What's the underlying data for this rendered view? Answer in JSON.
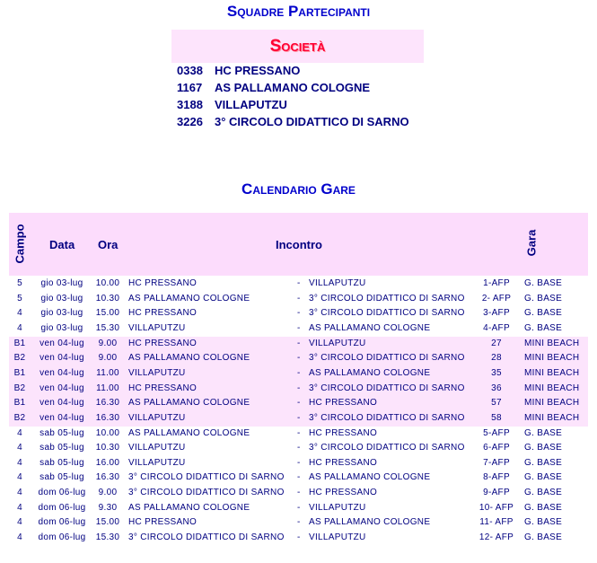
{
  "title": "Squadre Partecipanti",
  "societa": {
    "title": "Società",
    "items": [
      {
        "code": "0338",
        "name": "HC PRESSANO"
      },
      {
        "code": "1167",
        "name": "AS PALLAMANO COLOGNE"
      },
      {
        "code": "3188",
        "name": "VILLAPUTZU"
      },
      {
        "code": "3226",
        "name": "3° CIRCOLO DIDATTICO DI SARNO"
      }
    ]
  },
  "calendario": {
    "title": "Calendario Gare",
    "headers": {
      "campo": "Campo",
      "data": "Data",
      "ora": "Ora",
      "incontro": "Incontro",
      "gara": "Gara"
    },
    "rows": [
      {
        "campo": "5",
        "data": "gio 03-lug",
        "ora": "10.00",
        "home": "HC PRESSANO",
        "sep": "-",
        "away": "VILLAPUTZU",
        "num": "1-AFP",
        "tipo": "G. BASE",
        "hl": false
      },
      {
        "campo": "5",
        "data": "gio 03-lug",
        "ora": "10.30",
        "home": "AS PALLAMANO COLOGNE",
        "sep": "-",
        "away": "3° CIRCOLO DIDATTICO DI SARNO",
        "num": "2- AFP",
        "tipo": "G. BASE",
        "hl": false
      },
      {
        "campo": "4",
        "data": "gio 03-lug",
        "ora": "15.00",
        "home": "HC PRESSANO",
        "sep": "-",
        "away": "3° CIRCOLO DIDATTICO DI SARNO",
        "num": "3-AFP",
        "tipo": "G. BASE",
        "hl": false
      },
      {
        "campo": "4",
        "data": "gio 03-lug",
        "ora": "15.30",
        "home": "VILLAPUTZU",
        "sep": "-",
        "away": "AS PALLAMANO COLOGNE",
        "num": "4-AFP",
        "tipo": "G. BASE",
        "hl": false
      },
      {
        "campo": "B1",
        "data": "ven 04-lug",
        "ora": "9.00",
        "home": "HC PRESSANO",
        "sep": "-",
        "away": "VILLAPUTZU",
        "num": "27",
        "tipo": "MINI BEACH",
        "hl": true
      },
      {
        "campo": "B2",
        "data": "ven 04-lug",
        "ora": "9.00",
        "home": "AS PALLAMANO COLOGNE",
        "sep": "-",
        "away": "3° CIRCOLO DIDATTICO DI SARNO",
        "num": "28",
        "tipo": "MINI BEACH",
        "hl": true
      },
      {
        "campo": "B1",
        "data": "ven 04-lug",
        "ora": "11.00",
        "home": "VILLAPUTZU",
        "sep": "-",
        "away": "AS PALLAMANO COLOGNE",
        "num": "35",
        "tipo": "MINI BEACH",
        "hl": true
      },
      {
        "campo": "B2",
        "data": "ven 04-lug",
        "ora": "11.00",
        "home": "HC PRESSANO",
        "sep": "-",
        "away": "3° CIRCOLO DIDATTICO DI SARNO",
        "num": "36",
        "tipo": "MINI BEACH",
        "hl": true
      },
      {
        "campo": "B1",
        "data": "ven 04-lug",
        "ora": "16.30",
        "home": "AS PALLAMANO COLOGNE",
        "sep": "-",
        "away": "HC PRESSANO",
        "num": "57",
        "tipo": "MINI BEACH",
        "hl": true
      },
      {
        "campo": "B2",
        "data": "ven 04-lug",
        "ora": "16.30",
        "home": "VILLAPUTZU",
        "sep": "-",
        "away": "3° CIRCOLO DIDATTICO DI SARNO",
        "num": "58",
        "tipo": "MINI BEACH",
        "hl": true
      },
      {
        "campo": "4",
        "data": "sab 05-lug",
        "ora": "10.00",
        "home": "AS PALLAMANO COLOGNE",
        "sep": "-",
        "away": "HC PRESSANO",
        "num": "5-AFP",
        "tipo": "G. BASE",
        "hl": false
      },
      {
        "campo": "4",
        "data": "sab 05-lug",
        "ora": "10.30",
        "home": "VILLAPUTZU",
        "sep": "-",
        "away": "3° CIRCOLO DIDATTICO DI SARNO",
        "num": "6-AFP",
        "tipo": "G. BASE",
        "hl": false
      },
      {
        "campo": "4",
        "data": "sab 05-lug",
        "ora": "16.00",
        "home": "VILLAPUTZU",
        "sep": "-",
        "away": "HC PRESSANO",
        "num": "7-AFP",
        "tipo": "G. BASE",
        "hl": false
      },
      {
        "campo": "4",
        "data": "sab 05-lug",
        "ora": "16.30",
        "home": "3° CIRCOLO DIDATTICO DI SARNO",
        "sep": "-",
        "away": "AS PALLAMANO COLOGNE",
        "num": "8-AFP",
        "tipo": "G. BASE",
        "hl": false
      },
      {
        "campo": "4",
        "data": "dom 06-lug",
        "ora": "9.00",
        "home": "3° CIRCOLO DIDATTICO DI SARNO",
        "sep": "-",
        "away": "HC PRESSANO",
        "num": "9-AFP",
        "tipo": "G. BASE",
        "hl": false
      },
      {
        "campo": "4",
        "data": "dom 06-lug",
        "ora": "9.30",
        "home": "AS PALLAMANO COLOGNE",
        "sep": "-",
        "away": "VILLAPUTZU",
        "num": "10- AFP",
        "tipo": "G. BASE",
        "hl": false
      },
      {
        "campo": "4",
        "data": "dom 06-lug",
        "ora": "15.00",
        "home": "HC PRESSANO",
        "sep": "-",
        "away": "AS PALLAMANO COLOGNE",
        "num": "11- AFP",
        "tipo": "G. BASE",
        "hl": false
      },
      {
        "campo": "4",
        "data": "dom 06-lug",
        "ora": "15.30",
        "home": "3° CIRCOLO DIDATTICO DI SARNO",
        "sep": "-",
        "away": "VILLAPUTZU",
        "num": "12- AFP",
        "tipo": "G. BASE",
        "hl": false
      }
    ]
  }
}
